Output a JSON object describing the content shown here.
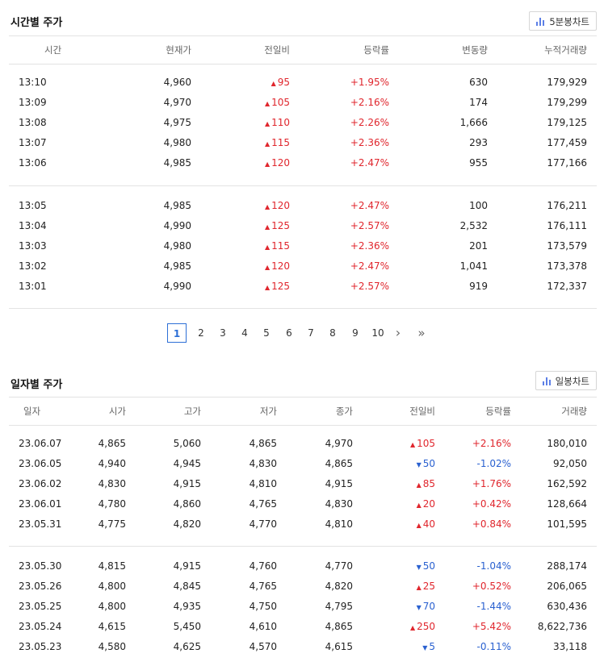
{
  "time_section": {
    "title": "시간별 주가",
    "chart_button": "5분봉차트",
    "headers": [
      "시간",
      "현재가",
      "전일비",
      "등락률",
      "변동량",
      "누적거래량"
    ],
    "groups": [
      [
        {
          "time": "13:10",
          "price": "4,960",
          "dir": "up",
          "change": "95",
          "rate": "+1.95%",
          "vol": "630",
          "cum": "179,929"
        },
        {
          "time": "13:09",
          "price": "4,970",
          "dir": "up",
          "change": "105",
          "rate": "+2.16%",
          "vol": "174",
          "cum": "179,299"
        },
        {
          "time": "13:08",
          "price": "4,975",
          "dir": "up",
          "change": "110",
          "rate": "+2.26%",
          "vol": "1,666",
          "cum": "179,125"
        },
        {
          "time": "13:07",
          "price": "4,980",
          "dir": "up",
          "change": "115",
          "rate": "+2.36%",
          "vol": "293",
          "cum": "177,459"
        },
        {
          "time": "13:06",
          "price": "4,985",
          "dir": "up",
          "change": "120",
          "rate": "+2.47%",
          "vol": "955",
          "cum": "177,166"
        }
      ],
      [
        {
          "time": "13:05",
          "price": "4,985",
          "dir": "up",
          "change": "120",
          "rate": "+2.47%",
          "vol": "100",
          "cum": "176,211"
        },
        {
          "time": "13:04",
          "price": "4,990",
          "dir": "up",
          "change": "125",
          "rate": "+2.57%",
          "vol": "2,532",
          "cum": "176,111"
        },
        {
          "time": "13:03",
          "price": "4,980",
          "dir": "up",
          "change": "115",
          "rate": "+2.36%",
          "vol": "201",
          "cum": "173,579"
        },
        {
          "time": "13:02",
          "price": "4,985",
          "dir": "up",
          "change": "120",
          "rate": "+2.47%",
          "vol": "1,041",
          "cum": "173,378"
        },
        {
          "time": "13:01",
          "price": "4,990",
          "dir": "up",
          "change": "125",
          "rate": "+2.57%",
          "vol": "919",
          "cum": "172,337"
        }
      ]
    ]
  },
  "pagination": {
    "pages": [
      "1",
      "2",
      "3",
      "4",
      "5",
      "6",
      "7",
      "8",
      "9",
      "10"
    ],
    "active": "1",
    "next_glyph": "›",
    "last_glyph": "»"
  },
  "daily_section": {
    "title": "일자별 주가",
    "chart_button": "일봉차트",
    "headers": [
      "일자",
      "시가",
      "고가",
      "저가",
      "종가",
      "전일비",
      "등락률",
      "거래량"
    ],
    "groups": [
      [
        {
          "date": "23.06.07",
          "open": "4,865",
          "high": "5,060",
          "low": "4,865",
          "close": "4,970",
          "dir": "up",
          "change": "105",
          "rate": "+2.16%",
          "volume": "180,010"
        },
        {
          "date": "23.06.05",
          "open": "4,940",
          "high": "4,945",
          "low": "4,830",
          "close": "4,865",
          "dir": "down",
          "change": "50",
          "rate": "-1.02%",
          "volume": "92,050"
        },
        {
          "date": "23.06.02",
          "open": "4,830",
          "high": "4,915",
          "low": "4,810",
          "close": "4,915",
          "dir": "up",
          "change": "85",
          "rate": "+1.76%",
          "volume": "162,592"
        },
        {
          "date": "23.06.01",
          "open": "4,780",
          "high": "4,860",
          "low": "4,765",
          "close": "4,830",
          "dir": "up",
          "change": "20",
          "rate": "+0.42%",
          "volume": "128,664"
        },
        {
          "date": "23.05.31",
          "open": "4,775",
          "high": "4,820",
          "low": "4,770",
          "close": "4,810",
          "dir": "up",
          "change": "40",
          "rate": "+0.84%",
          "volume": "101,595"
        }
      ],
      [
        {
          "date": "23.05.30",
          "open": "4,815",
          "high": "4,915",
          "low": "4,760",
          "close": "4,770",
          "dir": "down",
          "change": "50",
          "rate": "-1.04%",
          "volume": "288,174"
        },
        {
          "date": "23.05.26",
          "open": "4,800",
          "high": "4,845",
          "low": "4,765",
          "close": "4,820",
          "dir": "up",
          "change": "25",
          "rate": "+0.52%",
          "volume": "206,065"
        },
        {
          "date": "23.05.25",
          "open": "4,800",
          "high": "4,935",
          "low": "4,750",
          "close": "4,795",
          "dir": "down",
          "change": "70",
          "rate": "-1.44%",
          "volume": "630,436"
        },
        {
          "date": "23.05.24",
          "open": "4,615",
          "high": "5,450",
          "low": "4,610",
          "close": "4,865",
          "dir": "up",
          "change": "250",
          "rate": "+5.42%",
          "volume": "8,622,736"
        },
        {
          "date": "23.05.23",
          "open": "4,580",
          "high": "4,625",
          "low": "4,570",
          "close": "4,615",
          "dir": "down",
          "change": "5",
          "rate": "-0.11%",
          "volume": "33,118"
        }
      ]
    ]
  },
  "icons": {
    "chart": "bar-chart-icon",
    "up": "triangle-up-icon",
    "down": "triangle-down-icon"
  },
  "colors": {
    "up": "#e0262d",
    "down": "#2a61d0",
    "accent": "#2d6fd6"
  }
}
